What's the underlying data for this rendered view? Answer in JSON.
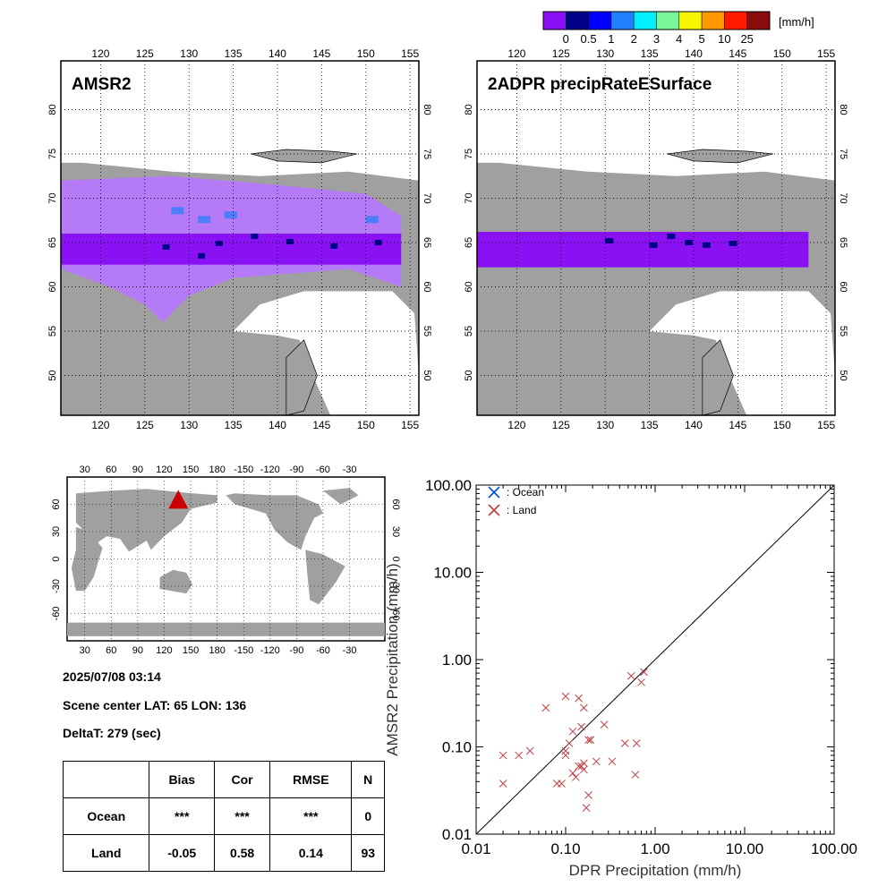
{
  "colorbar": {
    "unit": "[mm/h]",
    "colors": [
      "#8b11f5",
      "#000088",
      "#0000ff",
      "#2080ff",
      "#00f0ff",
      "#7af59a",
      "#f5f500",
      "#ff9900",
      "#ff1a00",
      "#8a0b0b"
    ],
    "labels": [
      "0",
      "0.5",
      "1",
      "2",
      "3",
      "4",
      "5",
      "10",
      "25"
    ]
  },
  "map_colors": {
    "land": "#a0a0a0",
    "ocean": "#ffffff",
    "rain_light": "#b57af5",
    "rain_moderate": "#8b11f5",
    "rain_heavy": "#000088",
    "rain_blue": "#2080ff"
  },
  "maps": [
    {
      "title": "AMSR2"
    },
    {
      "title": "2ADPR precipRateESurface"
    }
  ],
  "lon_ticks": [
    "120",
    "125",
    "130",
    "135",
    "140",
    "145",
    "150",
    "155"
  ],
  "lat_ticks": [
    "50",
    "55",
    "60",
    "65",
    "70",
    "75",
    "80"
  ],
  "globe": {
    "lon_ticks": [
      "30",
      "60",
      "90",
      "120",
      "150",
      "180",
      "-150",
      "-120",
      "-90",
      "-60",
      "-30"
    ],
    "lat_ticks": [
      "-60",
      "-30",
      "0",
      "30",
      "60"
    ],
    "marker_color": "#cc0000"
  },
  "info": {
    "datetime": "2025/07/08 03:14",
    "scene_center": "Scene center LAT: 65   LON: 136",
    "delta_t": "DeltaT:  279 (sec)"
  },
  "stats_table": {
    "headers": [
      "",
      "Bias",
      "Cor",
      "RMSE",
      "N"
    ],
    "rows": [
      [
        "Ocean",
        "***",
        "***",
        "***",
        "0"
      ],
      [
        "Land",
        "-0.05",
        "0.58",
        "0.14",
        "93"
      ]
    ]
  },
  "chart_data": {
    "type": "scatter",
    "xlabel": "DPR Precipitation (mm/h)",
    "ylabel": "AMSR2 Precipitation (mm/h)",
    "xscale": "log",
    "yscale": "log",
    "xlim": [
      0.01,
      100
    ],
    "ylim": [
      0.01,
      100
    ],
    "tick_labels": [
      "0.01",
      "0.10",
      "1.00",
      "10.00",
      "100.00"
    ],
    "legend_position": "top-left",
    "reference_line": "1:1",
    "series": [
      {
        "name": ": Ocean",
        "color": "#0050d0",
        "points": []
      },
      {
        "name": ": Land",
        "color": "#c04040",
        "points": [
          [
            0.02,
            0.08
          ],
          [
            0.02,
            0.038
          ],
          [
            0.03,
            0.08
          ],
          [
            0.04,
            0.09
          ],
          [
            0.06,
            0.28
          ],
          [
            0.08,
            0.038
          ],
          [
            0.09,
            0.038
          ],
          [
            0.1,
            0.09
          ],
          [
            0.1,
            0.38
          ],
          [
            0.1,
            0.08
          ],
          [
            0.11,
            0.11
          ],
          [
            0.12,
            0.15
          ],
          [
            0.12,
            0.05
          ],
          [
            0.13,
            0.045
          ],
          [
            0.14,
            0.36
          ],
          [
            0.14,
            0.06
          ],
          [
            0.15,
            0.17
          ],
          [
            0.15,
            0.06
          ],
          [
            0.16,
            0.065
          ],
          [
            0.16,
            0.055
          ],
          [
            0.16,
            0.28
          ],
          [
            0.17,
            0.02
          ],
          [
            0.18,
            0.028
          ],
          [
            0.18,
            0.12
          ],
          [
            0.19,
            0.12
          ],
          [
            0.22,
            0.068
          ],
          [
            0.27,
            0.18
          ],
          [
            0.33,
            0.068
          ],
          [
            0.46,
            0.11
          ],
          [
            0.54,
            0.65
          ],
          [
            0.6,
            0.048
          ],
          [
            0.62,
            0.11
          ],
          [
            0.7,
            0.55
          ],
          [
            0.75,
            0.72
          ]
        ]
      }
    ]
  }
}
